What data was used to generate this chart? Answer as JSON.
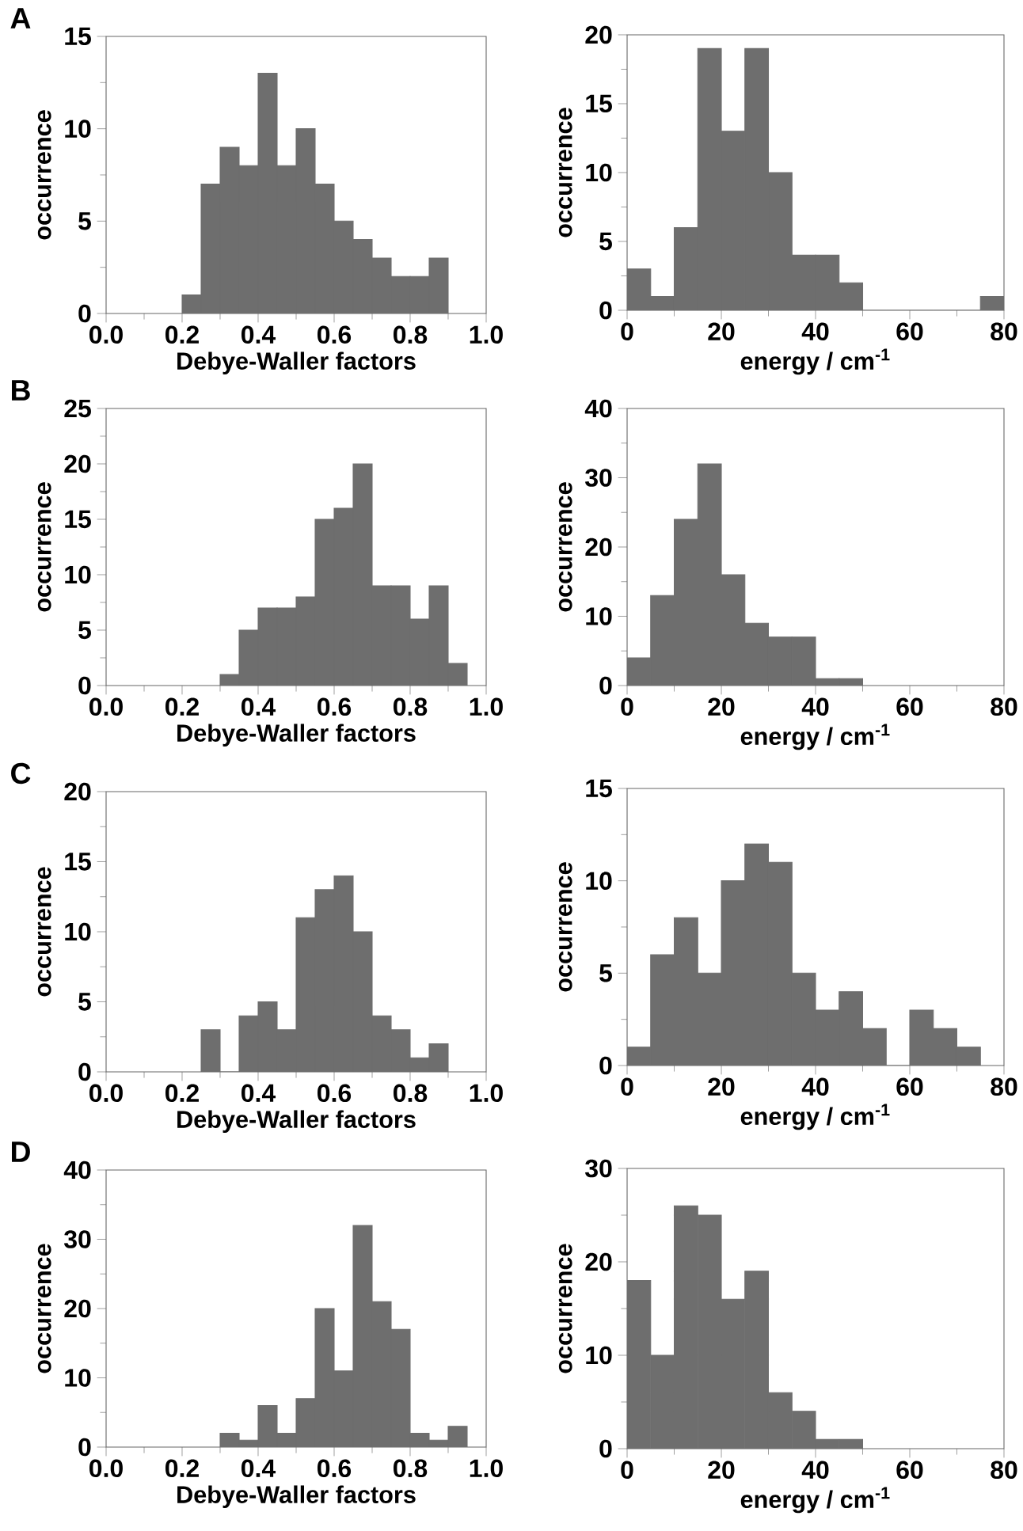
{
  "chart_data": [
    {
      "type": "histogram",
      "title": "A",
      "xlabel": "Debye-Waller factors",
      "ylabel": "occurrence",
      "color": "#6e6e6e",
      "bins": [
        0.2,
        0.25,
        0.3,
        0.35,
        0.4,
        0.45,
        0.5,
        0.55,
        0.6,
        0.65,
        0.7,
        0.75,
        0.8,
        0.85,
        0.9
      ],
      "values": [
        1,
        7,
        9,
        8,
        13,
        8,
        10,
        7,
        5,
        4,
        3,
        2,
        2,
        3
      ],
      "xlim": [
        0,
        1
      ],
      "ylim": [
        0,
        15
      ],
      "xticks": [
        {
          "value": 0,
          "label": "0.0"
        },
        {
          "value": 0.2,
          "label": "0.2"
        },
        {
          "value": 0.4,
          "label": "0.4"
        },
        {
          "value": 0.6,
          "label": "0.6"
        },
        {
          "value": 0.8,
          "label": "0.8"
        },
        {
          "value": 1,
          "label": "1.0"
        }
      ],
      "yticks": [
        0,
        5,
        10,
        15
      ]
    },
    {
      "type": "histogram",
      "xlabel": "energy / cm$^{-1}$",
      "ylabel": "occurrence",
      "color": "#6e6e6e",
      "bins": [
        0,
        5,
        10,
        15,
        20,
        25,
        30,
        35,
        40,
        45,
        50,
        55,
        60,
        65,
        70,
        75,
        80
      ],
      "values": [
        3,
        1,
        6,
        19,
        13,
        19,
        10,
        4,
        4,
        2,
        0,
        0,
        0,
        0,
        0,
        1
      ],
      "xlim": [
        0,
        80
      ],
      "ylim": [
        0,
        20
      ],
      "xticks": [
        0,
        20,
        40,
        60,
        80
      ],
      "yticks": [
        0,
        5,
        10,
        15,
        20
      ]
    },
    {
      "type": "histogram",
      "title": "B",
      "xlabel": "Debye-Waller factors",
      "ylabel": "occurrence",
      "color": "#6e6e6e",
      "bins": [
        0.3,
        0.35,
        0.4,
        0.45,
        0.5,
        0.55,
        0.6,
        0.65,
        0.7,
        0.75,
        0.8,
        0.85,
        0.9,
        0.95
      ],
      "values": [
        1,
        5,
        7,
        7,
        8,
        15,
        16,
        20,
        9,
        9,
        6,
        9,
        2
      ],
      "xlim": [
        0,
        1
      ],
      "ylim": [
        0,
        25
      ],
      "xticks": [
        {
          "value": 0,
          "label": "0.0"
        },
        {
          "value": 0.2,
          "label": "0.2"
        },
        {
          "value": 0.4,
          "label": "0.4"
        },
        {
          "value": 0.6,
          "label": "0.6"
        },
        {
          "value": 0.8,
          "label": "0.8"
        },
        {
          "value": 1,
          "label": "1.0"
        }
      ],
      "yticks": [
        0,
        5,
        10,
        15,
        20,
        25
      ]
    },
    {
      "type": "histogram",
      "xlabel": "energy / cm$^{-1}$",
      "ylabel": "occurrence",
      "color": "#6e6e6e",
      "bins": [
        0,
        5,
        10,
        15,
        20,
        25,
        30,
        35,
        40,
        45,
        50
      ],
      "values": [
        4,
        13,
        24,
        32,
        16,
        9,
        7,
        7,
        1,
        1
      ],
      "xlim": [
        0,
        80
      ],
      "ylim": [
        0,
        40
      ],
      "xticks": [
        0,
        20,
        40,
        60,
        80
      ],
      "yticks": [
        0,
        10,
        20,
        30,
        40
      ]
    },
    {
      "type": "histogram",
      "title": "C",
      "xlabel": "Debye-Waller factors",
      "ylabel": "occurrence",
      "color": "#6e6e6e",
      "bins": [
        0.25,
        0.3,
        0.35,
        0.4,
        0.45,
        0.5,
        0.55,
        0.6,
        0.65,
        0.7,
        0.75,
        0.8,
        0.85,
        0.9
      ],
      "values": [
        3,
        0,
        4,
        5,
        3,
        11,
        13,
        14,
        10,
        4,
        3,
        1,
        2
      ],
      "xlim": [
        0,
        1
      ],
      "ylim": [
        0,
        20
      ],
      "xticks": [
        {
          "value": 0,
          "label": "0.0"
        },
        {
          "value": 0.2,
          "label": "0.2"
        },
        {
          "value": 0.4,
          "label": "0.4"
        },
        {
          "value": 0.6,
          "label": "0.6"
        },
        {
          "value": 0.8,
          "label": "0.8"
        },
        {
          "value": 1,
          "label": "1.0"
        }
      ],
      "yticks": [
        0,
        5,
        10,
        15,
        20
      ]
    },
    {
      "type": "histogram",
      "xlabel": "energy / cm$^{-1}$",
      "ylabel": "occurrence",
      "color": "#6e6e6e",
      "bins": [
        0,
        5,
        10,
        15,
        20,
        25,
        30,
        35,
        40,
        45,
        50,
        55,
        60,
        65,
        70,
        75
      ],
      "values": [
        1,
        6,
        8,
        5,
        10,
        12,
        11,
        5,
        3,
        4,
        2,
        0,
        3,
        2,
        1
      ],
      "xlim": [
        0,
        80
      ],
      "ylim": [
        0,
        15
      ],
      "xticks": [
        0,
        20,
        40,
        60,
        80
      ],
      "yticks": [
        0,
        5,
        10,
        15
      ]
    },
    {
      "type": "histogram",
      "title": "D",
      "xlabel": "Debye-Waller factors",
      "ylabel": "occurrence",
      "color": "#6e6e6e",
      "bins": [
        0.3,
        0.35,
        0.4,
        0.45,
        0.5,
        0.55,
        0.6,
        0.65,
        0.7,
        0.75,
        0.8,
        0.85,
        0.9,
        0.95
      ],
      "values": [
        2,
        1,
        6,
        2,
        7,
        20,
        11,
        32,
        21,
        17,
        2,
        1,
        3
      ],
      "xlim": [
        0,
        1
      ],
      "ylim": [
        0,
        40
      ],
      "xticks": [
        {
          "value": 0,
          "label": "0.0"
        },
        {
          "value": 0.2,
          "label": "0.2"
        },
        {
          "value": 0.4,
          "label": "0.4"
        },
        {
          "value": 0.6,
          "label": "0.6"
        },
        {
          "value": 0.8,
          "label": "0.8"
        },
        {
          "value": 1,
          "label": "1.0"
        }
      ],
      "yticks": [
        0,
        10,
        20,
        30,
        40
      ]
    },
    {
      "type": "histogram",
      "xlabel": "energy / cm$^{-1}$",
      "ylabel": "occurrence",
      "color": "#6e6e6e",
      "bins": [
        0,
        5,
        10,
        15,
        20,
        25,
        30,
        35,
        40,
        45,
        50
      ],
      "values": [
        18,
        10,
        26,
        25,
        16,
        19,
        6,
        4,
        1,
        1
      ],
      "xlim": [
        0,
        80
      ],
      "ylim": [
        0,
        30
      ],
      "xticks": [
        0,
        20,
        40,
        60,
        80
      ],
      "yticks": [
        0,
        10,
        20,
        30
      ]
    }
  ]
}
